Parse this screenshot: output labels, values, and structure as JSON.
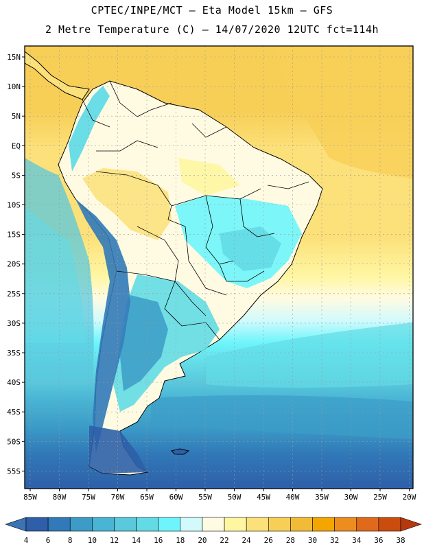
{
  "header": {
    "line1": "CPTEC/INPE/MCT –  Eta Model 15km – GFS",
    "line2": "2 Metre Temperature (C) – 14/07/2020 12UTC fct=114h"
  },
  "map": {
    "lon_labels": [
      "85W",
      "80W",
      "75W",
      "70W",
      "65W",
      "60W",
      "55W",
      "50W",
      "45W",
      "40W",
      "35W",
      "30W",
      "25W",
      "20W"
    ],
    "lat_labels": [
      "15N",
      "10N",
      "5N",
      "EQ",
      "5S",
      "10S",
      "15S",
      "20S",
      "25S",
      "30S",
      "35S",
      "40S",
      "45S",
      "50S",
      "55S"
    ]
  },
  "colorbar": {
    "labels": [
      "4",
      "6",
      "8",
      "10",
      "12",
      "14",
      "16",
      "18",
      "20",
      "22",
      "24",
      "26",
      "28",
      "30",
      "32",
      "34",
      "36",
      "38"
    ],
    "colors": [
      "#2e5fa8",
      "#3179b8",
      "#3c9cc7",
      "#49b4d4",
      "#5ac8dd",
      "#63dbe6",
      "#6ef5fb",
      "#d2fafc",
      "#fffbe2",
      "#fff6a2",
      "#fce079",
      "#f7cf57",
      "#f2bb37",
      "#f3a600",
      "#ec8d1f",
      "#e0691b",
      "#cb4d0d",
      "#b8380e"
    ],
    "min_color": "#3b73b5",
    "max_color": "#b8380e"
  }
}
